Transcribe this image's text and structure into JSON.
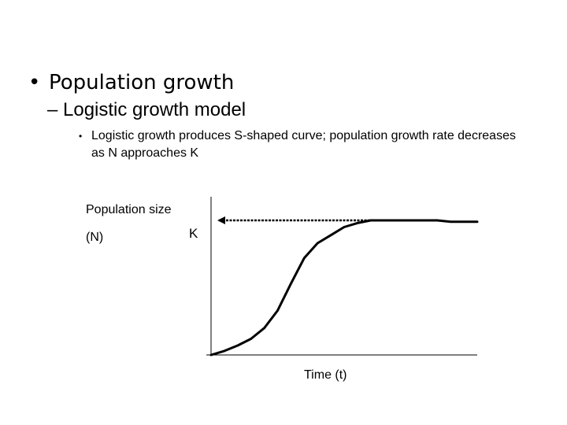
{
  "bullets": {
    "level1": "Population growth",
    "level2": "– Logistic growth model",
    "level3": "Logistic growth produces S-shaped curve; population growth rate decreases as N approaches K",
    "marker1": "•",
    "marker3": "•"
  },
  "chart_data": {
    "type": "line",
    "title": "",
    "ylabel": "Population size",
    "ylabel_unit": "(N)",
    "xlabel": "Time (t)",
    "k_label": "K",
    "k_value": 1.0,
    "ylim": [
      0,
      1.07
    ],
    "xlim": [
      0,
      1
    ],
    "grid": false,
    "x": [
      0.0,
      0.05,
      0.1,
      0.15,
      0.2,
      0.25,
      0.3,
      0.35,
      0.4,
      0.45,
      0.5,
      0.55,
      0.6,
      0.65,
      0.7,
      0.75,
      0.8,
      0.85,
      0.9,
      0.95,
      1.0
    ],
    "y": [
      0.0,
      0.03,
      0.07,
      0.12,
      0.2,
      0.33,
      0.53,
      0.72,
      0.83,
      0.89,
      0.95,
      0.98,
      1.0,
      1.0,
      1.0,
      1.0,
      1.0,
      1.0,
      0.99,
      0.99,
      0.99
    ]
  }
}
